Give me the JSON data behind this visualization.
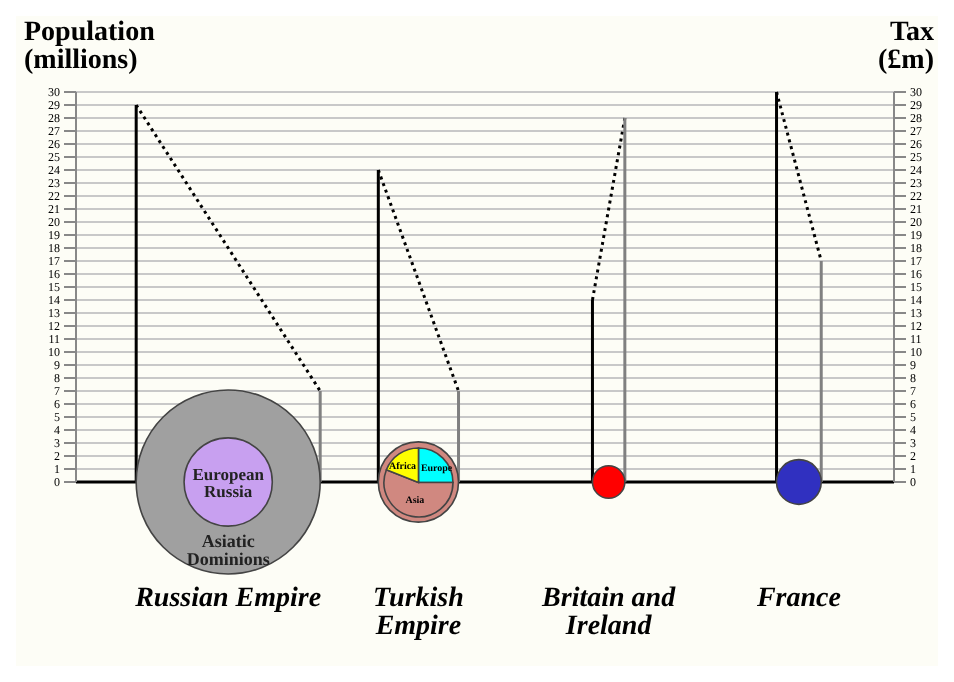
{
  "chart_data": [
    {
      "type": "bar",
      "categories": [
        "Russian Empire",
        "Turkish Empire",
        "Britain and Ireland",
        "France"
      ],
      "ylabel": "Population (millions)",
      "y2label": "Tax (£m)",
      "ylim": [
        0,
        30
      ],
      "yticks": [
        0,
        1,
        2,
        3,
        4,
        5,
        6,
        7,
        8,
        9,
        10,
        11,
        12,
        13,
        14,
        15,
        16,
        17,
        18,
        19,
        20,
        21,
        22,
        23,
        24,
        25,
        26,
        27,
        28,
        29,
        30
      ],
      "y2lim": [
        0,
        30
      ],
      "y2ticks": [
        0,
        1,
        2,
        3,
        4,
        5,
        6,
        7,
        8,
        9,
        10,
        11,
        12,
        13,
        14,
        15,
        16,
        17,
        18,
        19,
        20,
        21,
        22,
        23,
        24,
        25,
        26,
        27,
        28,
        29,
        30
      ],
      "grid": "y",
      "series": [
        {
          "color": "#000000",
          "values": [
            29,
            24,
            14,
            30
          ]
        },
        {
          "axis": "y2",
          "color": "#808080",
          "values": [
            7,
            7,
            28,
            17
          ]
        },
        {
          "type": "bubble",
          "name": "Asiatic Dominions",
          "color": "#a0a0a0",
          "x": [
            "Russian Empire"
          ],
          "values": [
            0
          ],
          "sizes": [
            1
          ]
        },
        {
          "type": "bubble",
          "name": "European Russia",
          "color": "#c8a0f0",
          "x": [
            "Russian Empire"
          ],
          "values": [
            0
          ],
          "sizes": [
            0.23
          ]
        },
        {
          "type": "bubble",
          "colors": [
            "#d08880",
            "#ff0000",
            "#3030c0"
          ],
          "x": [
            "Turkish Empire",
            "Britain and Ireland",
            "France"
          ],
          "values": [
            0,
            0,
            0
          ],
          "sizes": [
            0.19,
            0.031,
            0.059
          ]
        }
      ]
    },
    {
      "type": "pie",
      "categories": [
        "Europe",
        "Asia",
        "Africa"
      ],
      "values": [
        25,
        56,
        19
      ],
      "colors": [
        "#00ffff",
        "#d08880",
        "#ffff00"
      ]
    }
  ]
}
